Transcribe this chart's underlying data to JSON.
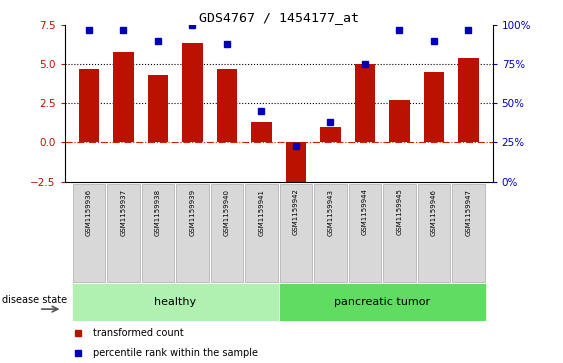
{
  "title": "GDS4767 / 1454177_at",
  "samples": [
    "GSM1159936",
    "GSM1159937",
    "GSM1159938",
    "GSM1159939",
    "GSM1159940",
    "GSM1159941",
    "GSM1159942",
    "GSM1159943",
    "GSM1159944",
    "GSM1159945",
    "GSM1159946",
    "GSM1159947"
  ],
  "bar_values": [
    4.7,
    5.8,
    4.3,
    6.4,
    4.7,
    1.3,
    -2.7,
    1.0,
    5.0,
    2.7,
    4.5,
    5.4
  ],
  "percentile_values": [
    97,
    97,
    90,
    100,
    88,
    45,
    23,
    38,
    75,
    97,
    90,
    97
  ],
  "bar_color": "#bb1100",
  "dot_color": "#0000bb",
  "ylim_left": [
    -2.5,
    7.5
  ],
  "ylim_right": [
    0,
    100
  ],
  "yticks_left": [
    -2.5,
    0.0,
    2.5,
    5.0,
    7.5
  ],
  "yticks_right": [
    0,
    25,
    50,
    75,
    100
  ],
  "hlines": [
    2.5,
    5.0
  ],
  "hline_color": "black",
  "hline_style": "dotted",
  "zero_line_color": "#cc2200",
  "zero_line_style": "dashdot",
  "healthy_indices": [
    0,
    1,
    2,
    3,
    4,
    5
  ],
  "tumor_indices": [
    6,
    7,
    8,
    9,
    10,
    11
  ],
  "healthy_label": "healthy",
  "tumor_label": "pancreatic tumor",
  "healthy_color": "#b0f0b0",
  "tumor_color": "#60dd60",
  "group_label": "disease state",
  "legend_bar_label": "transformed count",
  "legend_dot_label": "percentile rank within the sample",
  "tick_label_color_left": "#bb1100",
  "tick_label_color_right": "#0000bb",
  "bg_color": "#d8d8d8",
  "box_edge_color": "#aaaaaa"
}
